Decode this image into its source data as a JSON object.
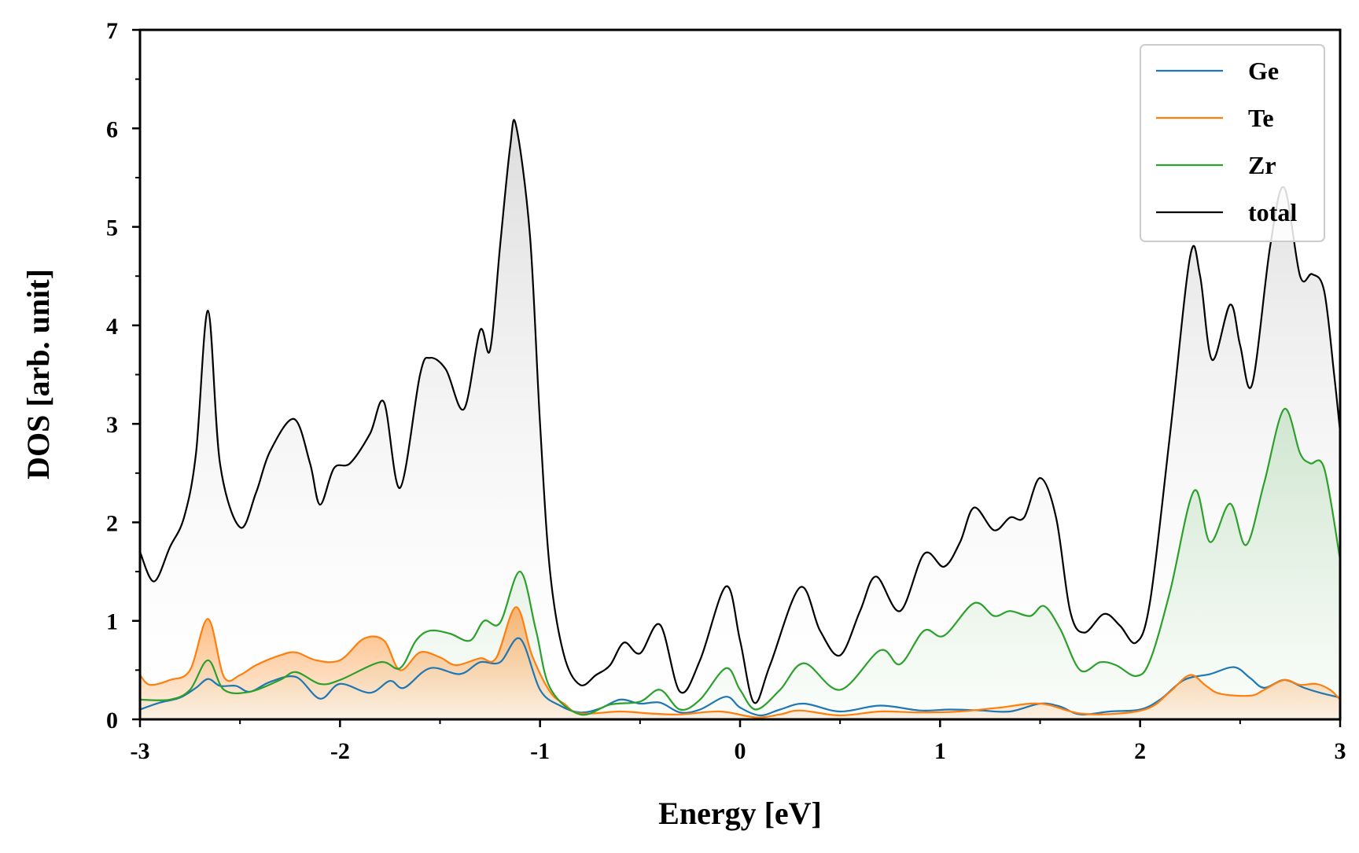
{
  "chart_data": {
    "type": "line",
    "title": "",
    "xlabel": "Energy [eV]",
    "ylabel": "DOS [arb. unit]",
    "xlim": [
      -3,
      3
    ],
    "ylim": [
      0,
      7
    ],
    "x_ticks": [
      "-3",
      "-2",
      "-1",
      "0",
      "1",
      "2",
      "3"
    ],
    "y_ticks": [
      "0",
      "1",
      "2",
      "3",
      "4",
      "5",
      "6",
      "7"
    ],
    "grid": false,
    "legend_position": "top-right",
    "series": [
      {
        "name": "Ge",
        "color": "#1f77b4",
        "filled": false,
        "points": [
          [
            -3.0,
            0.1
          ],
          [
            -2.9,
            0.17
          ],
          [
            -2.8,
            0.22
          ],
          [
            -2.72,
            0.32
          ],
          [
            -2.66,
            0.41
          ],
          [
            -2.6,
            0.34
          ],
          [
            -2.52,
            0.34
          ],
          [
            -2.45,
            0.28
          ],
          [
            -2.35,
            0.38
          ],
          [
            -2.22,
            0.43
          ],
          [
            -2.1,
            0.21
          ],
          [
            -2.0,
            0.36
          ],
          [
            -1.85,
            0.27
          ],
          [
            -1.75,
            0.39
          ],
          [
            -1.68,
            0.32
          ],
          [
            -1.55,
            0.52
          ],
          [
            -1.4,
            0.46
          ],
          [
            -1.3,
            0.58
          ],
          [
            -1.2,
            0.58
          ],
          [
            -1.1,
            0.82
          ],
          [
            -1.0,
            0.3
          ],
          [
            -0.9,
            0.14
          ],
          [
            -0.8,
            0.07
          ],
          [
            -0.7,
            0.11
          ],
          [
            -0.6,
            0.2
          ],
          [
            -0.5,
            0.16
          ],
          [
            -0.4,
            0.17
          ],
          [
            -0.3,
            0.07
          ],
          [
            -0.2,
            0.1
          ],
          [
            -0.07,
            0.23
          ],
          [
            0.0,
            0.12
          ],
          [
            0.1,
            0.04
          ],
          [
            0.2,
            0.1
          ],
          [
            0.32,
            0.16
          ],
          [
            0.5,
            0.08
          ],
          [
            0.7,
            0.14
          ],
          [
            0.9,
            0.09
          ],
          [
            1.05,
            0.1
          ],
          [
            1.2,
            0.09
          ],
          [
            1.35,
            0.08
          ],
          [
            1.5,
            0.16
          ],
          [
            1.6,
            0.13
          ],
          [
            1.7,
            0.05
          ],
          [
            1.85,
            0.08
          ],
          [
            2.0,
            0.1
          ],
          [
            2.1,
            0.2
          ],
          [
            2.22,
            0.4
          ],
          [
            2.35,
            0.46
          ],
          [
            2.47,
            0.53
          ],
          [
            2.55,
            0.42
          ],
          [
            2.62,
            0.32
          ],
          [
            2.72,
            0.4
          ],
          [
            2.82,
            0.32
          ],
          [
            2.9,
            0.27
          ],
          [
            3.0,
            0.22
          ]
        ]
      },
      {
        "name": "Te",
        "color": "#ff7f0e",
        "filled": true,
        "points": [
          [
            -3.0,
            0.45
          ],
          [
            -2.95,
            0.35
          ],
          [
            -2.85,
            0.4
          ],
          [
            -2.75,
            0.5
          ],
          [
            -2.66,
            1.02
          ],
          [
            -2.58,
            0.43
          ],
          [
            -2.5,
            0.45
          ],
          [
            -2.42,
            0.55
          ],
          [
            -2.3,
            0.65
          ],
          [
            -2.22,
            0.68
          ],
          [
            -2.12,
            0.6
          ],
          [
            -2.0,
            0.6
          ],
          [
            -1.88,
            0.82
          ],
          [
            -1.78,
            0.8
          ],
          [
            -1.7,
            0.5
          ],
          [
            -1.6,
            0.68
          ],
          [
            -1.5,
            0.63
          ],
          [
            -1.42,
            0.55
          ],
          [
            -1.3,
            0.62
          ],
          [
            -1.22,
            0.62
          ],
          [
            -1.12,
            1.14
          ],
          [
            -1.04,
            0.65
          ],
          [
            -0.95,
            0.28
          ],
          [
            -0.88,
            0.16
          ],
          [
            -0.8,
            0.06
          ],
          [
            -0.6,
            0.08
          ],
          [
            -0.45,
            0.06
          ],
          [
            -0.3,
            0.05
          ],
          [
            -0.1,
            0.08
          ],
          [
            0.08,
            0.02
          ],
          [
            0.2,
            0.05
          ],
          [
            0.3,
            0.09
          ],
          [
            0.5,
            0.04
          ],
          [
            0.7,
            0.08
          ],
          [
            0.9,
            0.07
          ],
          [
            1.1,
            0.08
          ],
          [
            1.3,
            0.12
          ],
          [
            1.5,
            0.16
          ],
          [
            1.7,
            0.06
          ],
          [
            1.9,
            0.06
          ],
          [
            2.05,
            0.12
          ],
          [
            2.15,
            0.28
          ],
          [
            2.25,
            0.45
          ],
          [
            2.33,
            0.34
          ],
          [
            2.4,
            0.26
          ],
          [
            2.55,
            0.24
          ],
          [
            2.62,
            0.3
          ],
          [
            2.72,
            0.4
          ],
          [
            2.8,
            0.35
          ],
          [
            2.88,
            0.36
          ],
          [
            2.95,
            0.3
          ],
          [
            3.0,
            0.2
          ]
        ]
      },
      {
        "name": "Zr",
        "color": "#2ca02c",
        "filled": true,
        "points": [
          [
            -3.0,
            0.2
          ],
          [
            -2.85,
            0.2
          ],
          [
            -2.75,
            0.3
          ],
          [
            -2.66,
            0.6
          ],
          [
            -2.58,
            0.3
          ],
          [
            -2.45,
            0.28
          ],
          [
            -2.3,
            0.4
          ],
          [
            -2.22,
            0.48
          ],
          [
            -2.1,
            0.36
          ],
          [
            -2.0,
            0.4
          ],
          [
            -1.8,
            0.58
          ],
          [
            -1.7,
            0.52
          ],
          [
            -1.62,
            0.8
          ],
          [
            -1.55,
            0.9
          ],
          [
            -1.45,
            0.87
          ],
          [
            -1.35,
            0.8
          ],
          [
            -1.28,
            1.0
          ],
          [
            -1.2,
            0.98
          ],
          [
            -1.1,
            1.5
          ],
          [
            -1.02,
            0.9
          ],
          [
            -0.95,
            0.32
          ],
          [
            -0.8,
            0.05
          ],
          [
            -0.65,
            0.15
          ],
          [
            -0.5,
            0.18
          ],
          [
            -0.4,
            0.3
          ],
          [
            -0.3,
            0.1
          ],
          [
            -0.2,
            0.2
          ],
          [
            -0.07,
            0.52
          ],
          [
            0.0,
            0.3
          ],
          [
            0.08,
            0.1
          ],
          [
            0.2,
            0.3
          ],
          [
            0.32,
            0.57
          ],
          [
            0.5,
            0.3
          ],
          [
            0.7,
            0.7
          ],
          [
            0.8,
            0.56
          ],
          [
            0.92,
            0.9
          ],
          [
            1.02,
            0.85
          ],
          [
            1.17,
            1.18
          ],
          [
            1.27,
            1.05
          ],
          [
            1.35,
            1.1
          ],
          [
            1.45,
            1.05
          ],
          [
            1.52,
            1.15
          ],
          [
            1.6,
            0.92
          ],
          [
            1.7,
            0.5
          ],
          [
            1.8,
            0.58
          ],
          [
            1.88,
            0.55
          ],
          [
            1.98,
            0.44
          ],
          [
            2.05,
            0.6
          ],
          [
            2.15,
            1.3
          ],
          [
            2.27,
            2.32
          ],
          [
            2.35,
            1.8
          ],
          [
            2.45,
            2.19
          ],
          [
            2.53,
            1.77
          ],
          [
            2.62,
            2.4
          ],
          [
            2.72,
            3.15
          ],
          [
            2.8,
            2.7
          ],
          [
            2.85,
            2.6
          ],
          [
            2.92,
            2.55
          ],
          [
            3.0,
            1.62
          ]
        ]
      },
      {
        "name": "total",
        "color": "#000000",
        "filled": true,
        "points": [
          [
            -3.0,
            1.7
          ],
          [
            -2.93,
            1.4
          ],
          [
            -2.85,
            1.75
          ],
          [
            -2.78,
            2.05
          ],
          [
            -2.72,
            2.7
          ],
          [
            -2.66,
            4.15
          ],
          [
            -2.6,
            2.6
          ],
          [
            -2.5,
            1.95
          ],
          [
            -2.42,
            2.3
          ],
          [
            -2.35,
            2.72
          ],
          [
            -2.23,
            3.05
          ],
          [
            -2.15,
            2.6
          ],
          [
            -2.1,
            2.18
          ],
          [
            -2.03,
            2.55
          ],
          [
            -1.95,
            2.6
          ],
          [
            -1.85,
            2.9
          ],
          [
            -1.78,
            3.22
          ],
          [
            -1.7,
            2.35
          ],
          [
            -1.6,
            3.5
          ],
          [
            -1.55,
            3.67
          ],
          [
            -1.47,
            3.55
          ],
          [
            -1.38,
            3.15
          ],
          [
            -1.3,
            3.95
          ],
          [
            -1.25,
            3.75
          ],
          [
            -1.2,
            4.8
          ],
          [
            -1.15,
            5.8
          ],
          [
            -1.12,
            6.03
          ],
          [
            -1.05,
            4.9
          ],
          [
            -1.0,
            3.0
          ],
          [
            -0.95,
            1.5
          ],
          [
            -0.88,
            0.65
          ],
          [
            -0.8,
            0.35
          ],
          [
            -0.72,
            0.45
          ],
          [
            -0.65,
            0.55
          ],
          [
            -0.58,
            0.78
          ],
          [
            -0.5,
            0.67
          ],
          [
            -0.4,
            0.96
          ],
          [
            -0.3,
            0.28
          ],
          [
            -0.2,
            0.6
          ],
          [
            -0.07,
            1.35
          ],
          [
            0.0,
            0.8
          ],
          [
            0.07,
            0.17
          ],
          [
            0.15,
            0.55
          ],
          [
            0.3,
            1.34
          ],
          [
            0.4,
            0.9
          ],
          [
            0.5,
            0.65
          ],
          [
            0.6,
            1.1
          ],
          [
            0.68,
            1.45
          ],
          [
            0.8,
            1.1
          ],
          [
            0.92,
            1.68
          ],
          [
            1.02,
            1.55
          ],
          [
            1.1,
            1.8
          ],
          [
            1.17,
            2.15
          ],
          [
            1.27,
            1.92
          ],
          [
            1.35,
            2.05
          ],
          [
            1.42,
            2.05
          ],
          [
            1.5,
            2.45
          ],
          [
            1.58,
            2.05
          ],
          [
            1.65,
            1.1
          ],
          [
            1.72,
            0.88
          ],
          [
            1.82,
            1.07
          ],
          [
            1.9,
            0.95
          ],
          [
            1.98,
            0.78
          ],
          [
            2.05,
            1.2
          ],
          [
            2.15,
            2.9
          ],
          [
            2.25,
            4.7
          ],
          [
            2.3,
            4.5
          ],
          [
            2.36,
            3.65
          ],
          [
            2.45,
            4.21
          ],
          [
            2.5,
            3.8
          ],
          [
            2.56,
            3.4
          ],
          [
            2.65,
            4.8
          ],
          [
            2.72,
            5.4
          ],
          [
            2.8,
            4.5
          ],
          [
            2.86,
            4.52
          ],
          [
            2.92,
            4.35
          ],
          [
            2.97,
            3.5
          ],
          [
            3.0,
            2.92
          ]
        ]
      }
    ]
  }
}
